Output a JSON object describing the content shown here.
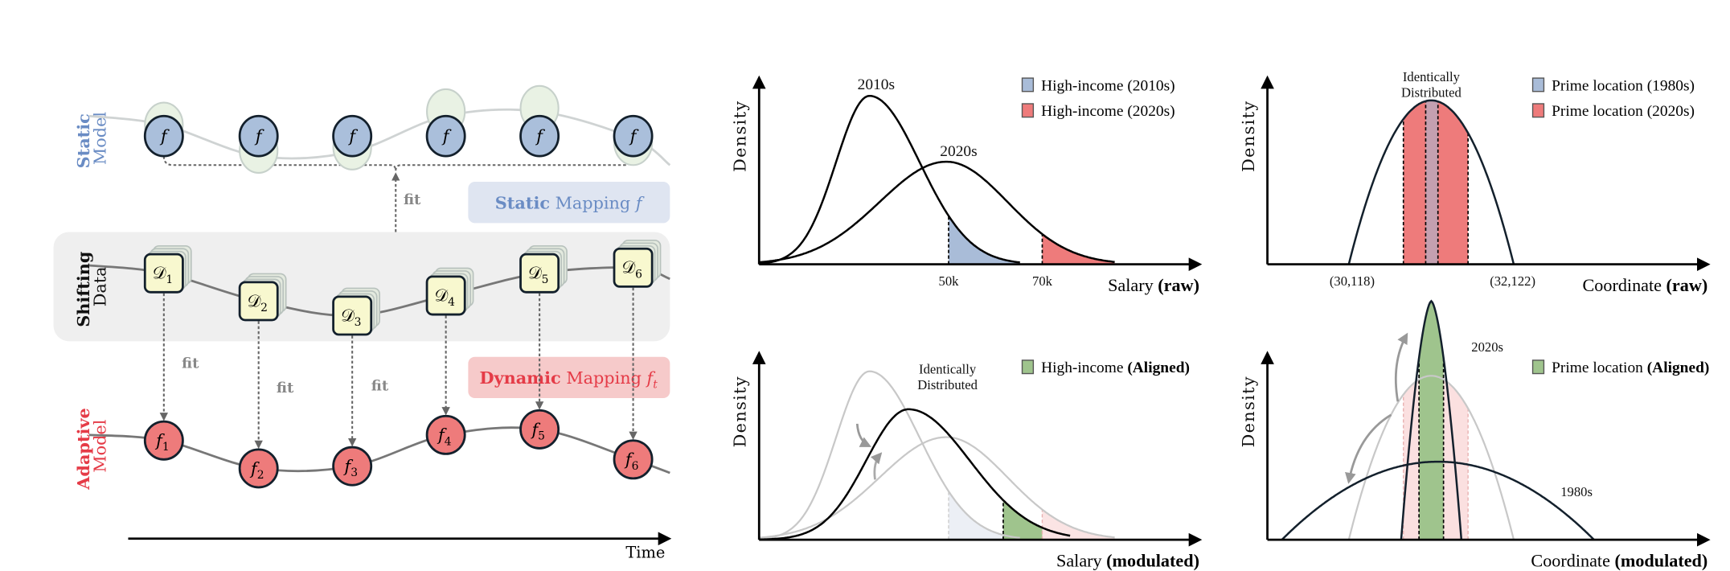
{
  "left": {
    "static_model": {
      "bold": "Static",
      "rest": "Model"
    },
    "shifting_data": {
      "bold": "Shifting",
      "rest": "Data"
    },
    "adaptive_model": {
      "bold": "Adaptive",
      "rest": "Model"
    },
    "static_nodes": [
      "f",
      "f",
      "f",
      "f",
      "f",
      "f"
    ],
    "data_nodes": [
      {
        "sym": "𝒟",
        "sub": "1"
      },
      {
        "sym": "𝒟",
        "sub": "2"
      },
      {
        "sym": "𝒟",
        "sub": "3"
      },
      {
        "sym": "𝒟",
        "sub": "4"
      },
      {
        "sym": "𝒟",
        "sub": "5"
      },
      {
        "sym": "𝒟",
        "sub": "6"
      }
    ],
    "adaptive_nodes": [
      {
        "sym": "f",
        "sub": "1"
      },
      {
        "sym": "f",
        "sub": "2"
      },
      {
        "sym": "f",
        "sub": "3"
      },
      {
        "sym": "f",
        "sub": "4"
      },
      {
        "sym": "f",
        "sub": "5"
      },
      {
        "sym": "f",
        "sub": "6"
      }
    ],
    "fit_label": "fit",
    "static_mapping": {
      "bold": "Static",
      "rest": " Mapping ",
      "sym": "f"
    },
    "dynamic_mapping": {
      "bold": "Dynamic",
      "rest": " Mapping ",
      "sym": "f",
      "sub": "t"
    },
    "time_label": "Time"
  },
  "colors": {
    "blue": "#a9bcd8",
    "red": "#ee7b7b",
    "green": "#9fc48d",
    "static_text": "#6a8cc4",
    "adaptive_text": "#e53b47"
  },
  "chart_data": [
    {
      "type": "area",
      "title": "",
      "ylabel": "Density",
      "xlabel": {
        "text": "Salary ",
        "bold": "(raw)"
      },
      "series": [
        {
          "name": "2010s",
          "peak": "low salary"
        },
        {
          "name": "2020s",
          "peak": "higher salary, wider"
        }
      ],
      "ticks": [
        "50k",
        "70k"
      ],
      "legend": [
        {
          "label": "High-income (2010s)",
          "color": "#a9bcd8"
        },
        {
          "label": "High-income (2020s)",
          "color": "#ee7b7b"
        }
      ],
      "legend_position": "top-right"
    },
    {
      "type": "area",
      "ylabel": "Density",
      "xlabel": {
        "text": "Coordinate ",
        "bold": "(raw)"
      },
      "annotation": [
        "Identically",
        "Distributed"
      ],
      "ticks": [
        "(30,118)",
        "(32,122)"
      ],
      "legend": [
        {
          "label": "Prime location (1980s)",
          "color": "#a9bcd8"
        },
        {
          "label": "Prime location (2020s)",
          "color": "#ee7b7b"
        }
      ],
      "legend_position": "top-right"
    },
    {
      "type": "area",
      "ylabel": "Density",
      "xlabel": {
        "text": "Salary ",
        "bold": "(modulated)"
      },
      "annotation": [
        "Identically",
        "Distributed"
      ],
      "legend": [
        {
          "label": "High-income ",
          "bold": "(Aligned)",
          "color": "#9fc48d"
        }
      ],
      "legend_position": "top-right"
    },
    {
      "type": "area",
      "ylabel": "Density",
      "xlabel": {
        "text": "Coordinate ",
        "bold": "(modulated)"
      },
      "series": [
        {
          "name": "2020s"
        },
        {
          "name": "1980s"
        }
      ],
      "legend": [
        {
          "label": "Prime location ",
          "bold": "(Aligned)",
          "color": "#9fc48d"
        }
      ],
      "legend_position": "top-right"
    }
  ]
}
